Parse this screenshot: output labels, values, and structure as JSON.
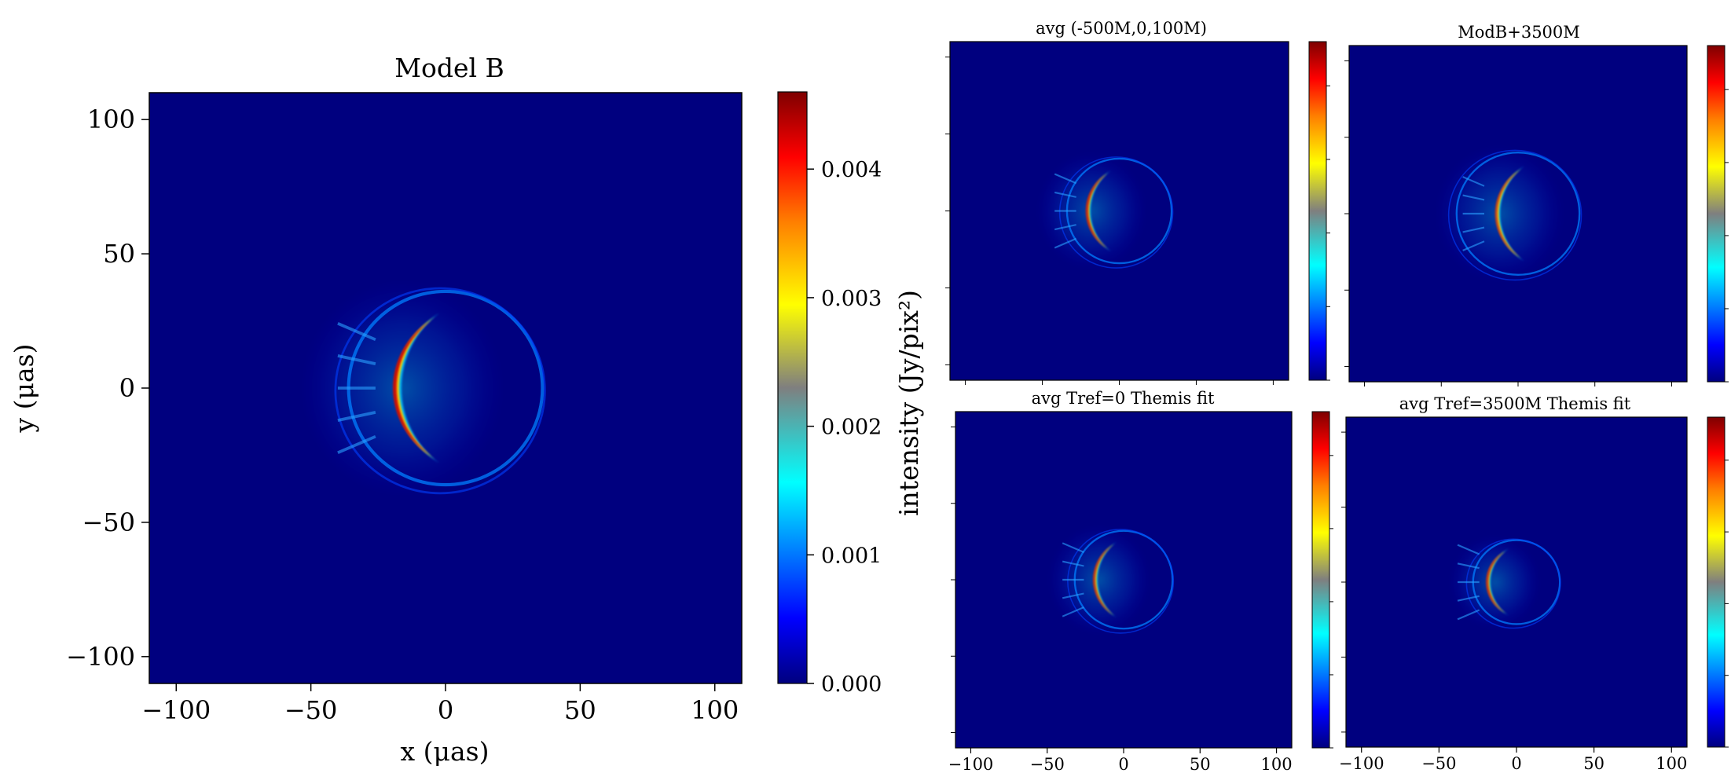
{
  "figure": {
    "colorbar_label": "intensity (Jy/pix²)",
    "colormap_stops": [
      "#00007f",
      "#0000ff",
      "#007fff",
      "#00ffff",
      "#7fff7f",
      "#ffff00",
      "#ff7f00",
      "#ff0000",
      "#7f0000"
    ]
  },
  "chart_data": [
    {
      "type": "heatmap",
      "title": "Model B",
      "xlabel": "x (μas)",
      "ylabel": "y (μas)",
      "xlim": [
        -110,
        110
      ],
      "ylim": [
        -110,
        110
      ],
      "xticks": [
        -100,
        -50,
        0,
        50,
        100
      ],
      "yticks": [
        -100,
        -50,
        0,
        50,
        100
      ],
      "xticklabels": [
        "−100",
        "−50",
        "0",
        "50",
        "100"
      ],
      "yticklabels": [
        "−100",
        "−50",
        "0",
        "50",
        "100"
      ],
      "colorbar": {
        "range": [
          0,
          0.0046
        ],
        "ticks": [
          0.0,
          0.001,
          0.002,
          0.003,
          0.004
        ],
        "ticklabels": [
          "0.000",
          "0.001",
          "0.002",
          "0.003",
          "0.004"
        ]
      },
      "features": {
        "ring_center": [
          0,
          0
        ],
        "ring_radius": 36,
        "crescent_center": [
          -22,
          0
        ],
        "peak_intensity": 0.0046,
        "jets_y": [
          0,
          -8
        ]
      }
    },
    {
      "type": "heatmap",
      "title": "avg (-500M,0,100M)",
      "xlim": [
        -110,
        110
      ],
      "ylim": [
        -110,
        110
      ],
      "colorbar": {
        "range": [
          0,
          0.0046
        ]
      },
      "features": {
        "ring_center": [
          0,
          0
        ],
        "ring_radius": 34,
        "crescent_center": [
          -24,
          0
        ]
      }
    },
    {
      "type": "heatmap",
      "title": "ModB+3500M",
      "xlim": [
        -110,
        110
      ],
      "ylim": [
        -110,
        110
      ],
      "colorbar": {
        "range": [
          0,
          0.0046
        ]
      },
      "features": {
        "ring_center": [
          0,
          0
        ],
        "ring_radius": 40,
        "crescent_center": [
          -18,
          4
        ]
      }
    },
    {
      "type": "heatmap",
      "title": "avg Tref=0 Themis fit",
      "xlim": [
        -110,
        110
      ],
      "ylim": [
        -110,
        110
      ],
      "xticks": [
        -100,
        -50,
        0,
        50,
        100
      ],
      "xticklabels": [
        "−100",
        "−50",
        "0",
        "50",
        "100"
      ],
      "colorbar": {
        "range": [
          0,
          0.0046
        ]
      },
      "features": {
        "ring_center": [
          0,
          0
        ],
        "ring_radius": 32,
        "crescent_center": [
          -22,
          0
        ]
      }
    },
    {
      "type": "heatmap",
      "title": "avg Tref=3500M Themis fit",
      "xlim": [
        -110,
        110
      ],
      "ylim": [
        -110,
        110
      ],
      "xticks": [
        -100,
        -50,
        0,
        50,
        100
      ],
      "xticklabels": [
        "−100",
        "−50",
        "0",
        "50",
        "100"
      ],
      "colorbar": {
        "range": [
          0,
          0.0046
        ]
      },
      "features": {
        "ring_center": [
          0,
          0
        ],
        "ring_radius": 28,
        "crescent_center": [
          -20,
          -2
        ]
      }
    }
  ]
}
